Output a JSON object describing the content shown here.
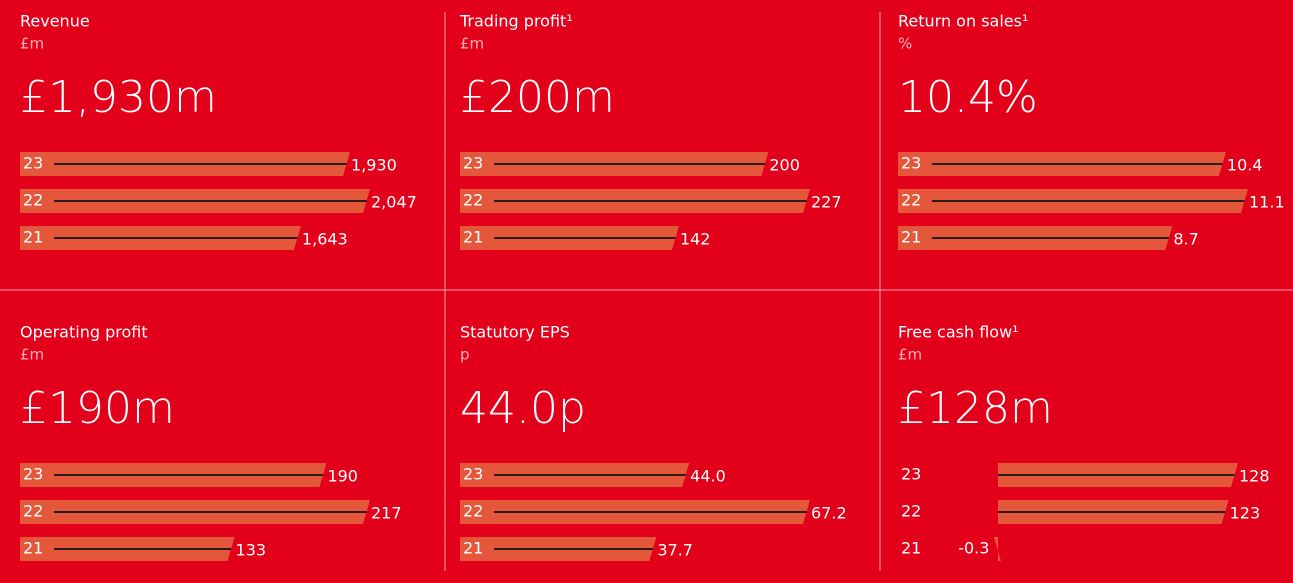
{
  "chart_data": [
    {
      "type": "bar",
      "title": "Revenue",
      "unit": "£m",
      "headline": "£1,930m",
      "categories": [
        "23",
        "22",
        "21"
      ],
      "values": [
        1930,
        2047,
        1643
      ],
      "value_labels": [
        "1,930",
        "2,047",
        "1,643"
      ],
      "color": "#e4573b"
    },
    {
      "type": "bar",
      "title": "Trading profit¹",
      "unit": "£m",
      "headline": "£200m",
      "categories": [
        "23",
        "22",
        "21"
      ],
      "values": [
        200,
        227,
        142
      ],
      "color": "#e4573b"
    },
    {
      "type": "bar",
      "title": "Return on sales¹",
      "unit": "%",
      "headline": "10.4%",
      "categories": [
        "23",
        "22",
        "21"
      ],
      "values": [
        10.4,
        11.1,
        8.7
      ],
      "color": "#e4573b"
    },
    {
      "type": "bar",
      "title": "Operating profit",
      "unit": "£m",
      "headline": "£190m",
      "categories": [
        "23",
        "22",
        "21"
      ],
      "values": [
        190,
        217,
        133
      ],
      "color": "#e4573b"
    },
    {
      "type": "bar",
      "title": "Statutory EPS",
      "unit": "p",
      "headline": "44.0p",
      "categories": [
        "23",
        "22",
        "21"
      ],
      "values": [
        44.0,
        67.2,
        37.7
      ],
      "value_labels": [
        "44.0",
        "67.2",
        "37.7"
      ],
      "color": "#e4573b"
    },
    {
      "type": "bar",
      "title": "Free cash flow¹",
      "unit": "£m",
      "headline": "£128m",
      "categories": [
        "23",
        "22",
        "21"
      ],
      "values": [
        128,
        123,
        -0.3
      ],
      "color": "#e4573b"
    }
  ]
}
